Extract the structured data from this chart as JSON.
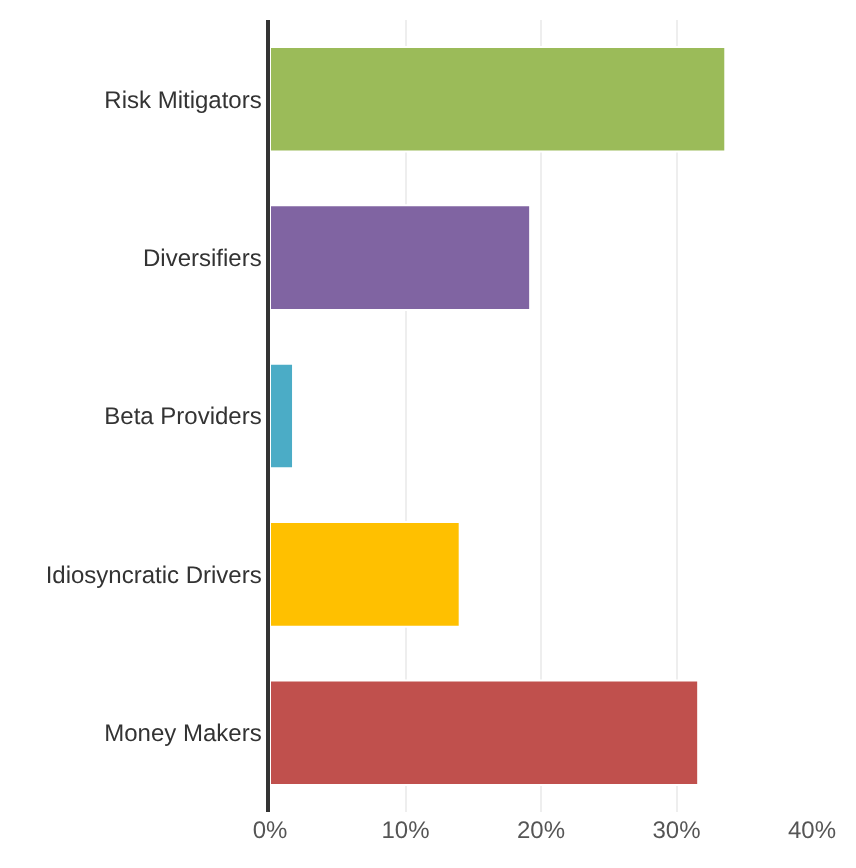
{
  "chart_data": {
    "type": "bar",
    "orientation": "horizontal",
    "categories": [
      "Risk Mitigators",
      "Diversifiers",
      "Beta Providers",
      "Idiosyncratic Drivers",
      "Money Makers"
    ],
    "values": [
      33.6,
      19.2,
      1.7,
      14.0,
      31.6
    ],
    "colors": [
      "#9bbb59",
      "#8064a2",
      "#4bacc6",
      "#ffc000",
      "#c0504d"
    ],
    "xlim": [
      0,
      40
    ],
    "xticks": [
      {
        "value": 0,
        "label": "0%"
      },
      {
        "value": 10,
        "label": "10%"
      },
      {
        "value": 20,
        "label": "20%"
      },
      {
        "value": 30,
        "label": "30%"
      },
      {
        "value": 40,
        "label": "40%"
      }
    ],
    "grid": "x"
  }
}
